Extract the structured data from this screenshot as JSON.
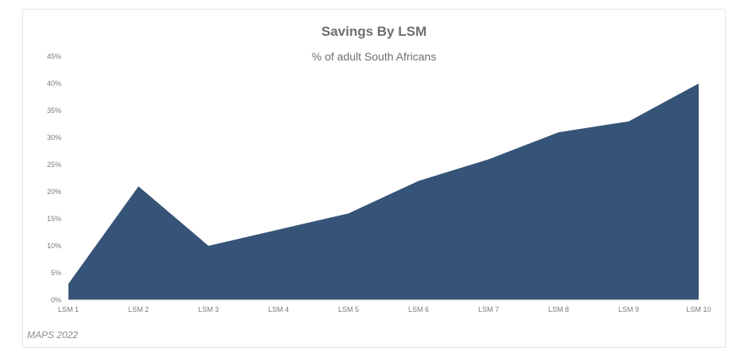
{
  "chart_data": {
    "type": "area",
    "title": "Savings By LSM",
    "subtitle": "% of adult South Africans",
    "source": "MAPS 2022",
    "categories": [
      "LSM 1",
      "LSM 2",
      "LSM 3",
      "LSM 4",
      "LSM 5",
      "LSM 6",
      "LSM 7",
      "LSM 8",
      "LSM 9",
      "LSM 10"
    ],
    "values": [
      3,
      21,
      10,
      13,
      16,
      22,
      26,
      31,
      33,
      40
    ],
    "ylim": [
      0,
      45
    ],
    "yticks": [
      "0%",
      "5%",
      "10%",
      "15%",
      "20%",
      "25%",
      "30%",
      "35%",
      "40%",
      "45%"
    ],
    "fill_color": "#365477",
    "grid": false,
    "legend": "none"
  }
}
